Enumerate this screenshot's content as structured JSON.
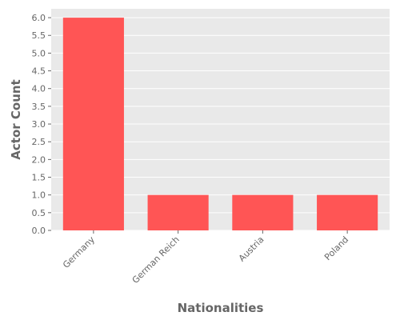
{
  "chart_data": {
    "type": "bar",
    "title": "",
    "xlabel": "Nationalities",
    "ylabel": "Actor Count",
    "categories": [
      "Germany",
      "German Reich",
      "Austria",
      "Poland"
    ],
    "values": [
      6,
      1,
      1,
      1
    ],
    "ylim": [
      0,
      6.25
    ],
    "yticks": [
      "0.0",
      "0.5",
      "1.0",
      "1.5",
      "2.0",
      "2.5",
      "3.0",
      "3.5",
      "4.0",
      "4.5",
      "5.0",
      "5.5",
      "6.0"
    ],
    "grid": true,
    "legend": "none",
    "colors": {
      "bar": "#ff5555",
      "plot_background": "#e9e9e9",
      "grid": "#ffffff",
      "text": "#666666"
    }
  }
}
